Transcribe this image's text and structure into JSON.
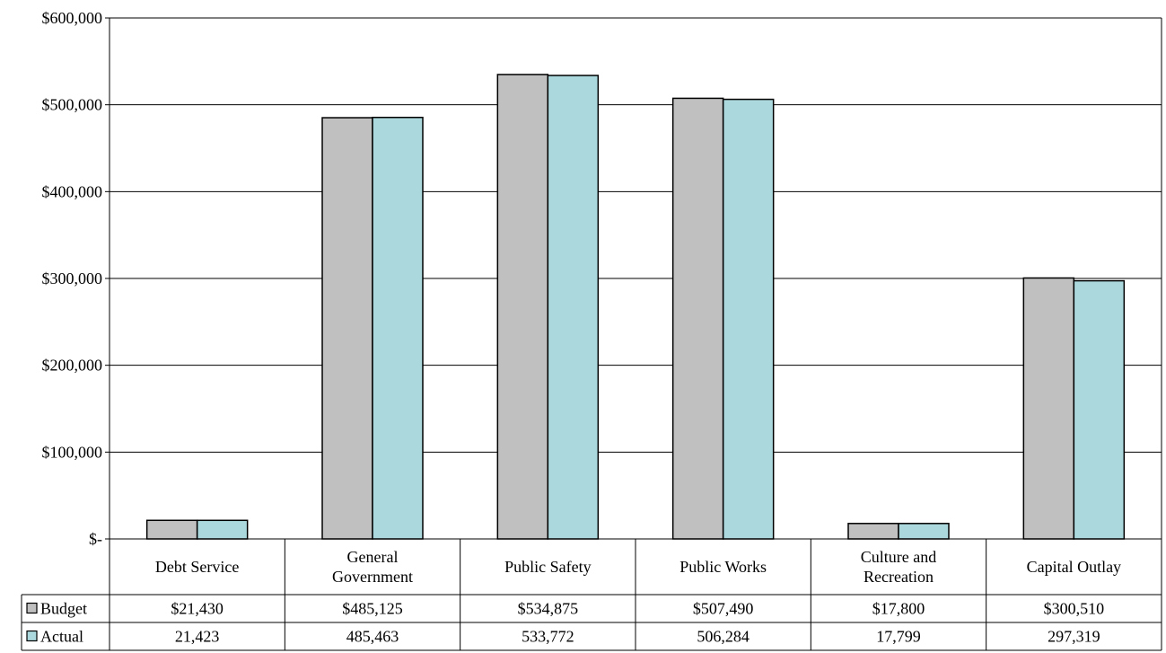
{
  "chart_data": {
    "type": "bar",
    "title": "",
    "xlabel": "",
    "ylabel": "",
    "ylim": [
      0,
      600000
    ],
    "y_ticks": [
      {
        "value": 0,
        "label": "$-"
      },
      {
        "value": 100000,
        "label": "$100,000"
      },
      {
        "value": 200000,
        "label": "$200,000"
      },
      {
        "value": 300000,
        "label": "$300,000"
      },
      {
        "value": 400000,
        "label": "$400,000"
      },
      {
        "value": 500000,
        "label": "$500,000"
      },
      {
        "value": 600000,
        "label": "$600,000"
      }
    ],
    "grid": true,
    "legend": "data-table-left",
    "categories": [
      [
        "Debt Service"
      ],
      [
        "General",
        "Government"
      ],
      [
        "Public Safety"
      ],
      [
        "Public Works"
      ],
      [
        "Culture and",
        "Recreation"
      ],
      [
        "Capital Outlay"
      ]
    ],
    "series": [
      {
        "name": "Budget",
        "color": "#c0c0c0",
        "values": [
          21430,
          485125,
          534875,
          507490,
          17800,
          300510
        ],
        "labels": [
          "$21,430",
          "$485,125",
          "$534,875",
          "$507,490",
          "$17,800",
          "$300,510"
        ]
      },
      {
        "name": "Actual",
        "color": "#aad8dc",
        "values": [
          21423,
          485463,
          533772,
          506284,
          17799,
          297319
        ],
        "labels": [
          "21,423",
          "485,463",
          "533,772",
          "506,284",
          "17,799",
          "297,319"
        ]
      }
    ]
  }
}
